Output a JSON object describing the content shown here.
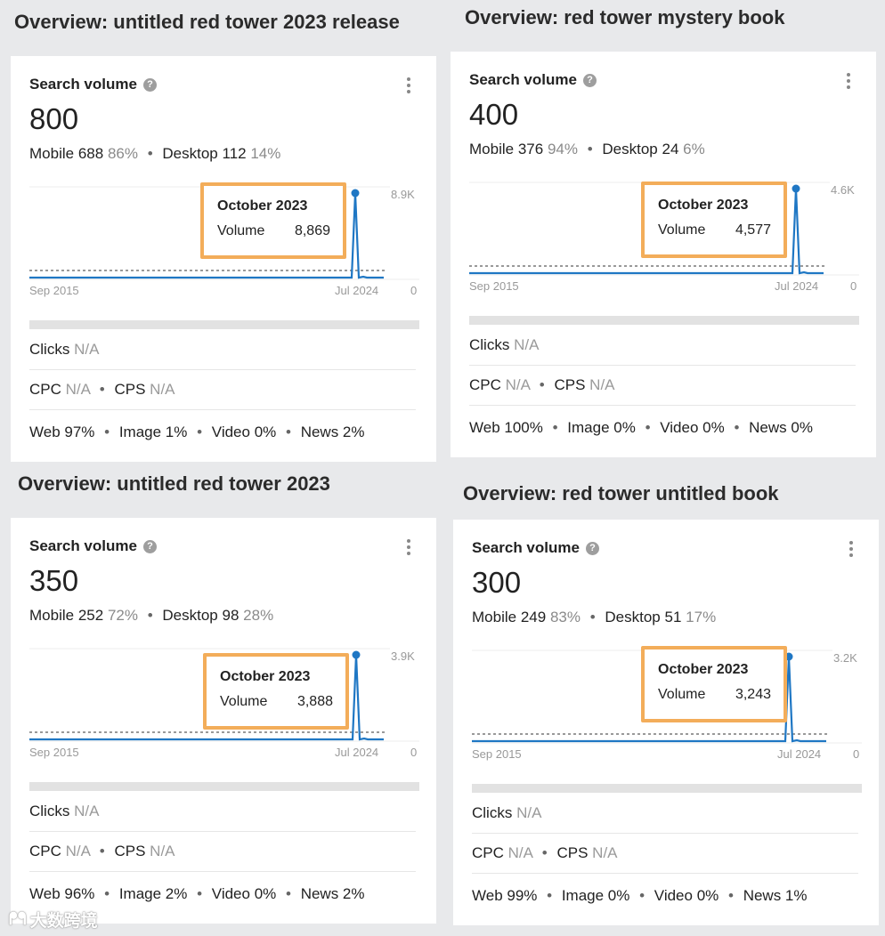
{
  "panels": [
    {
      "heading": "Overview: untitled red tower 2023 release",
      "search_volume_label": "Search volume",
      "help_icon": "?",
      "volume": "800",
      "mobile_label": "Mobile",
      "mobile_value": "688",
      "mobile_pct": "86%",
      "desktop_label": "Desktop",
      "desktop_value": "112",
      "desktop_pct": "14%",
      "chart": {
        "start_label": "Sep 2015",
        "end_label": "Jul 2024",
        "max_label": "8.9K",
        "min_label": "0",
        "peak_value": 8869
      },
      "tooltip": {
        "month": "October 2023",
        "metric_label": "Volume",
        "metric_value": "8,869"
      },
      "clicks_label": "Clicks",
      "clicks_value": "N/A",
      "cpc_label": "CPC",
      "cpc_value": "N/A",
      "cps_label": "CPS",
      "cps_value": "N/A",
      "web": "Web 97%",
      "image": "Image 1%",
      "video": "Video 0%",
      "news": "News 2%"
    },
    {
      "heading": "Overview: red tower mystery book",
      "search_volume_label": "Search volume",
      "help_icon": "?",
      "volume": "400",
      "mobile_label": "Mobile",
      "mobile_value": "376",
      "mobile_pct": "94%",
      "desktop_label": "Desktop",
      "desktop_value": "24",
      "desktop_pct": "6%",
      "chart": {
        "start_label": "Sep 2015",
        "end_label": "Jul 2024",
        "max_label": "4.6K",
        "min_label": "0",
        "peak_value": 4577
      },
      "tooltip": {
        "month": "October 2023",
        "metric_label": "Volume",
        "metric_value": "4,577"
      },
      "clicks_label": "Clicks",
      "clicks_value": "N/A",
      "cpc_label": "CPC",
      "cpc_value": "N/A",
      "cps_label": "CPS",
      "cps_value": "N/A",
      "web": "Web 100%",
      "image": "Image 0%",
      "video": "Video 0%",
      "news": "News 0%"
    },
    {
      "heading": "Overview: untitled red tower 2023",
      "search_volume_label": "Search volume",
      "help_icon": "?",
      "volume": "350",
      "mobile_label": "Mobile",
      "mobile_value": "252",
      "mobile_pct": "72%",
      "desktop_label": "Desktop",
      "desktop_value": "98",
      "desktop_pct": "28%",
      "chart": {
        "start_label": "Sep 2015",
        "end_label": "Jul 2024",
        "max_label": "3.9K",
        "min_label": "0",
        "peak_value": 3888
      },
      "tooltip": {
        "month": "October 2023",
        "metric_label": "Volume",
        "metric_value": "3,888"
      },
      "clicks_label": "Clicks",
      "clicks_value": "N/A",
      "cpc_label": "CPC",
      "cpc_value": "N/A",
      "cps_label": "CPS",
      "cps_value": "N/A",
      "web": "Web 96%",
      "image": "Image 2%",
      "video": "Video 0%",
      "news": "News 2%"
    },
    {
      "heading": "Overview: red tower untitled book",
      "search_volume_label": "Search volume",
      "help_icon": "?",
      "volume": "300",
      "mobile_label": "Mobile",
      "mobile_value": "249",
      "mobile_pct": "83%",
      "desktop_label": "Desktop",
      "desktop_value": "51",
      "desktop_pct": "17%",
      "chart": {
        "start_label": "Sep 2015",
        "end_label": "Jul 2024",
        "max_label": "3.2K",
        "min_label": "0",
        "peak_value": 3243
      },
      "tooltip": {
        "month": "October 2023",
        "metric_label": "Volume",
        "metric_value": "3,243"
      },
      "clicks_label": "Clicks",
      "clicks_value": "N/A",
      "cpc_label": "CPC",
      "cpc_value": "N/A",
      "cps_label": "CPS",
      "cps_value": "N/A",
      "web": "Web 99%",
      "image": "Image 0%",
      "video": "Video 0%",
      "news": "News 1%"
    }
  ],
  "watermark": "大数跨境",
  "colors": {
    "line": "#1f77c4",
    "highlight": "#f3ad5a"
  }
}
